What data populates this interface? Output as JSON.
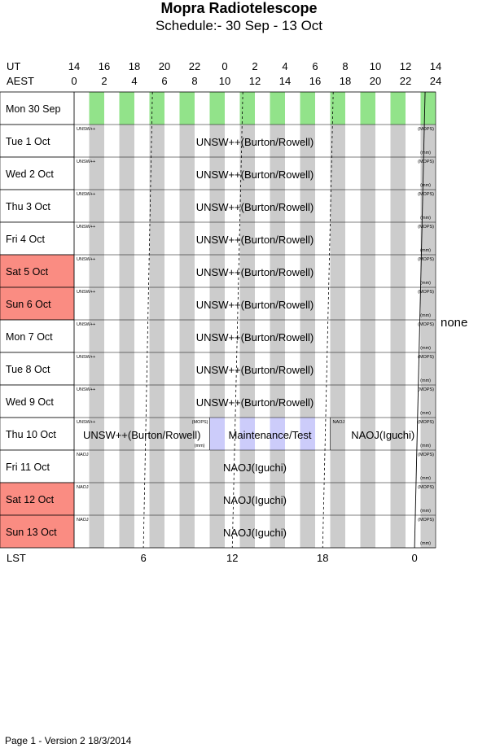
{
  "header": {
    "title": "Mopra Radiotelescope",
    "subtitle": "Schedule:- 30 Sep - 13 Oct",
    "ut_label": "UT",
    "aest_label": "AEST",
    "ut_ticks": [
      "14",
      "16",
      "18",
      "20",
      "22",
      "0",
      "2",
      "4",
      "6",
      "8",
      "10",
      "12",
      "14"
    ],
    "aest_ticks": [
      "0",
      "2",
      "4",
      "6",
      "8",
      "10",
      "12",
      "14",
      "16",
      "18",
      "20",
      "22",
      "24"
    ]
  },
  "lst": {
    "label": "LST",
    "ticks": [
      "6",
      "12",
      "18",
      "0"
    ]
  },
  "days": [
    {
      "label": "Mon  30 Sep",
      "weekend": false,
      "blocks": []
    },
    {
      "label": "Tue    1  Oct",
      "weekend": false,
      "blocks": [
        {
          "name": "UNSW++(Burton/Rowell)",
          "tag": "UNSW++",
          "start": 0,
          "end": 24
        }
      ]
    },
    {
      "label": "Wed   2  Oct",
      "weekend": false,
      "blocks": [
        {
          "name": "UNSW++(Burton/Rowell)",
          "tag": "UNSW++",
          "start": 0,
          "end": 24
        }
      ]
    },
    {
      "label": "Thu    3  Oct",
      "weekend": false,
      "blocks": [
        {
          "name": "UNSW++(Burton/Rowell)",
          "tag": "UNSW++",
          "start": 0,
          "end": 24
        }
      ]
    },
    {
      "label": "Fri     4  Oct",
      "weekend": false,
      "blocks": [
        {
          "name": "UNSW++(Burton/Rowell)",
          "tag": "UNSW++",
          "start": 0,
          "end": 24
        }
      ]
    },
    {
      "label": "Sat    5  Oct",
      "weekend": true,
      "blocks": [
        {
          "name": "UNSW++(Burton/Rowell)",
          "tag": "UNSW++",
          "start": 0,
          "end": 24
        }
      ]
    },
    {
      "label": "Sun   6  Oct",
      "weekend": true,
      "blocks": [
        {
          "name": "UNSW++(Burton/Rowell)",
          "tag": "UNSW++",
          "start": 0,
          "end": 24
        }
      ]
    },
    {
      "label": "Mon   7  Oct",
      "weekend": false,
      "blocks": [
        {
          "name": "UNSW++(Burton/Rowell)",
          "tag": "UNSW++",
          "start": 0,
          "end": 24
        }
      ]
    },
    {
      "label": "Tue    8  Oct",
      "weekend": false,
      "blocks": [
        {
          "name": "UNSW++(Burton/Rowell)",
          "tag": "UNSW++",
          "start": 0,
          "end": 24
        }
      ]
    },
    {
      "label": "Wed   9  Oct",
      "weekend": false,
      "blocks": [
        {
          "name": "UNSW++(Burton/Rowell)",
          "tag": "UNSW++",
          "start": 0,
          "end": 24
        }
      ]
    },
    {
      "label": "Thu   10  Oct",
      "weekend": false,
      "blocks": [
        {
          "name": "UNSW++(Burton/Rowell)",
          "tag": "UNSW++",
          "start": 0,
          "end": 9
        },
        {
          "name": "Maintenance/Test",
          "tag": "",
          "start": 9,
          "end": 17,
          "maintenance": true
        },
        {
          "name": "NAOJ(Iguchi)",
          "tag": "NAOJ",
          "start": 17,
          "end": 24
        }
      ]
    },
    {
      "label": "Fri    11  Oct",
      "weekend": false,
      "blocks": [
        {
          "name": "NAOJ(Iguchi)",
          "tag": "NAOJ",
          "start": 0,
          "end": 24
        }
      ]
    },
    {
      "label": "Sat   12  Oct",
      "weekend": true,
      "blocks": [
        {
          "name": "NAOJ(Iguchi)",
          "tag": "NAOJ",
          "start": 0,
          "end": 24
        }
      ]
    },
    {
      "label": "Sun   13  Oct",
      "weekend": true,
      "blocks": [
        {
          "name": "NAOJ(Iguchi)",
          "tag": "NAOJ",
          "start": 0,
          "end": 24
        }
      ]
    }
  ],
  "mops_label": "(MOPS)",
  "mm_label": "(mm)",
  "side_note": "none",
  "footer": "Page 1 - Version 2  18/3/2014",
  "colors": {
    "weekend": "#fa8c82",
    "daylight_green": "#92e38a",
    "stripe_gray": "#cccccc",
    "maintenance": "#ccccfa"
  }
}
